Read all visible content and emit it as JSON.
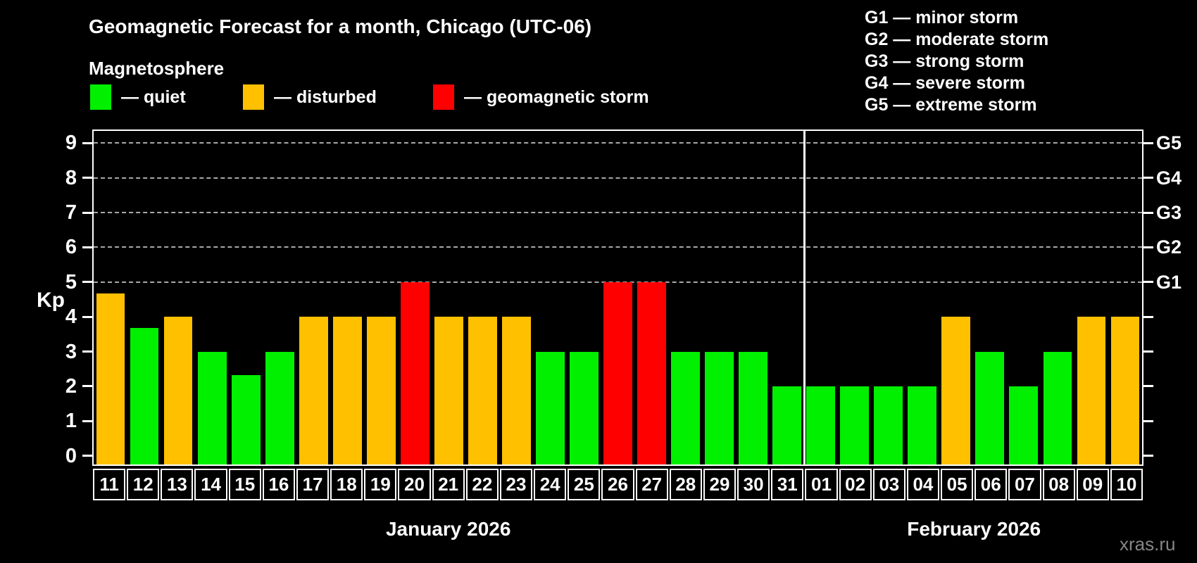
{
  "watermark": "xras.ru",
  "chart_data": {
    "type": "bar",
    "title": "Geomagnetic Forecast for a month, Chicago (UTC-06)",
    "subtitle": "Magnetosphere",
    "ylabel": "Kp",
    "ylim": [
      -0.25,
      9.35
    ],
    "yticks": [
      0,
      1,
      2,
      3,
      4,
      5,
      6,
      7,
      8,
      9
    ],
    "grid_levels": [
      5,
      6,
      7,
      8,
      9
    ],
    "grid_on": true,
    "legend_position": "top-left",
    "legend": [
      {
        "status": "quiet",
        "label": "— quiet",
        "color": "#00f000"
      },
      {
        "status": "disturbed",
        "label": "— disturbed",
        "color": "#ffc000"
      },
      {
        "status": "storm",
        "label": "— geomagnetic storm",
        "color": "#ff0000"
      }
    ],
    "g_levels": [
      {
        "code": "G1",
        "kp": 5,
        "description": "G1 — minor storm"
      },
      {
        "code": "G2",
        "kp": 6,
        "description": "G2 — moderate storm"
      },
      {
        "code": "G3",
        "kp": 7,
        "description": "G3 — strong storm"
      },
      {
        "code": "G4",
        "kp": 8,
        "description": "G4 — severe storm"
      },
      {
        "code": "G5",
        "kp": 9,
        "description": "G5 — extreme storm"
      }
    ],
    "months": [
      {
        "label": "January 2026",
        "days": 21
      },
      {
        "label": "February 2026",
        "days": 10
      }
    ],
    "colors": {
      "quiet": "#00f000",
      "disturbed": "#ffc000",
      "storm": "#ff0000"
    },
    "points": [
      {
        "day": "11",
        "kp": 4.67,
        "status": "disturbed"
      },
      {
        "day": "12",
        "kp": 3.67,
        "status": "quiet"
      },
      {
        "day": "13",
        "kp": 4,
        "status": "disturbed"
      },
      {
        "day": "14",
        "kp": 3,
        "status": "quiet"
      },
      {
        "day": "15",
        "kp": 2.33,
        "status": "quiet"
      },
      {
        "day": "16",
        "kp": 3,
        "status": "quiet"
      },
      {
        "day": "17",
        "kp": 4,
        "status": "disturbed"
      },
      {
        "day": "18",
        "kp": 4,
        "status": "disturbed"
      },
      {
        "day": "19",
        "kp": 4,
        "status": "disturbed"
      },
      {
        "day": "20",
        "kp": 5,
        "status": "storm"
      },
      {
        "day": "21",
        "kp": 4,
        "status": "disturbed"
      },
      {
        "day": "22",
        "kp": 4,
        "status": "disturbed"
      },
      {
        "day": "23",
        "kp": 4,
        "status": "disturbed"
      },
      {
        "day": "24",
        "kp": 3,
        "status": "quiet"
      },
      {
        "day": "25",
        "kp": 3,
        "status": "quiet"
      },
      {
        "day": "26",
        "kp": 5,
        "status": "storm"
      },
      {
        "day": "27",
        "kp": 5,
        "status": "storm"
      },
      {
        "day": "28",
        "kp": 3,
        "status": "quiet"
      },
      {
        "day": "29",
        "kp": 3,
        "status": "quiet"
      },
      {
        "day": "30",
        "kp": 3,
        "status": "quiet"
      },
      {
        "day": "31",
        "kp": 2,
        "status": "quiet"
      },
      {
        "day": "01",
        "kp": 2,
        "status": "quiet"
      },
      {
        "day": "02",
        "kp": 2,
        "status": "quiet"
      },
      {
        "day": "03",
        "kp": 2,
        "status": "quiet"
      },
      {
        "day": "04",
        "kp": 2,
        "status": "quiet"
      },
      {
        "day": "05",
        "kp": 4,
        "status": "disturbed"
      },
      {
        "day": "06",
        "kp": 3,
        "status": "quiet"
      },
      {
        "day": "07",
        "kp": 2,
        "status": "quiet"
      },
      {
        "day": "08",
        "kp": 3,
        "status": "quiet"
      },
      {
        "day": "09",
        "kp": 4,
        "status": "disturbed"
      },
      {
        "day": "10",
        "kp": 4,
        "status": "disturbed"
      }
    ]
  }
}
